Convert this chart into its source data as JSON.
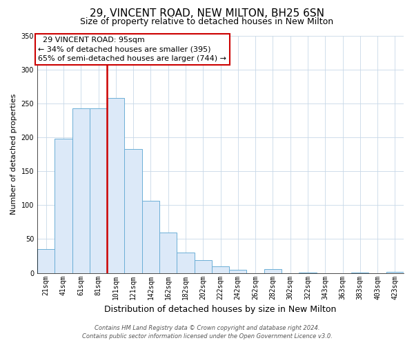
{
  "title": "29, VINCENT ROAD, NEW MILTON, BH25 6SN",
  "subtitle": "Size of property relative to detached houses in New Milton",
  "xlabel": "Distribution of detached houses by size in New Milton",
  "ylabel": "Number of detached properties",
  "bar_labels": [
    "21sqm",
    "41sqm",
    "61sqm",
    "81sqm",
    "101sqm",
    "121sqm",
    "142sqm",
    "162sqm",
    "182sqm",
    "202sqm",
    "222sqm",
    "242sqm",
    "262sqm",
    "282sqm",
    "302sqm",
    "322sqm",
    "343sqm",
    "363sqm",
    "383sqm",
    "403sqm",
    "423sqm"
  ],
  "bar_values": [
    35,
    198,
    243,
    243,
    258,
    183,
    106,
    60,
    30,
    19,
    10,
    5,
    0,
    6,
    0,
    1,
    0,
    0,
    1,
    0,
    2
  ],
  "bar_color": "#dce9f8",
  "bar_edge_color": "#6baed6",
  "vline_x_index": 4,
  "vline_color": "#cc0000",
  "ylim": [
    0,
    350
  ],
  "yticks": [
    0,
    50,
    100,
    150,
    200,
    250,
    300,
    350
  ],
  "annotation_title": "29 VINCENT ROAD: 95sqm",
  "annotation_line1": "← 34% of detached houses are smaller (395)",
  "annotation_line2": "65% of semi-detached houses are larger (744) →",
  "annotation_box_facecolor": "#ffffff",
  "annotation_box_edgecolor": "#cc0000",
  "footer_line1": "Contains HM Land Registry data © Crown copyright and database right 2024.",
  "footer_line2": "Contains public sector information licensed under the Open Government Licence v3.0.",
  "title_fontsize": 11,
  "subtitle_fontsize": 9,
  "xlabel_fontsize": 9,
  "ylabel_fontsize": 8,
  "tick_fontsize": 7,
  "annotation_fontsize": 8,
  "footer_fontsize": 6
}
